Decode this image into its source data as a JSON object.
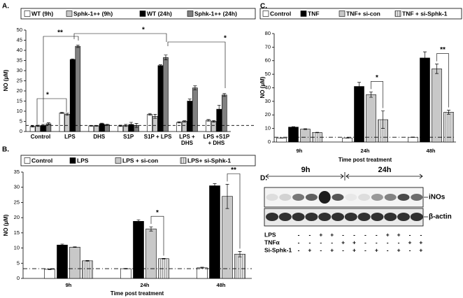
{
  "chart_data": [
    {
      "type": "bar",
      "panel_label": "A.",
      "ylabel": "NO (µM)",
      "categories": [
        "Control",
        "LPS",
        "DHS",
        "S1P",
        "S1P + LPS",
        "LPS + DHS",
        "LPS +S1P + DHS"
      ],
      "series": [
        {
          "name": "WT (9h)",
          "color": "#ffffff",
          "values": [
            2.5,
            9.2,
            2.8,
            2.8,
            8.5,
            4.5,
            5.5
          ],
          "errors": [
            0.3,
            0.3,
            0.2,
            0.3,
            0.4,
            0.3,
            0.4
          ]
        },
        {
          "name": "Sphk-1++ (9h)",
          "color": "#c8c8c8",
          "values": [
            2.8,
            8.5,
            2.8,
            3,
            7.5,
            5,
            5
          ],
          "errors": [
            0.3,
            0.5,
            0.2,
            0.5,
            1,
            0.3,
            0.4
          ]
        },
        {
          "name": "WT (24h)",
          "color": "#000000",
          "values": [
            3,
            35.5,
            3.8,
            3.5,
            32.5,
            15,
            11
          ],
          "errors": [
            0.5,
            0.3,
            0.3,
            1,
            0.4,
            1,
            2
          ]
        },
        {
          "name": "Sphk-1++ (24h)",
          "color": "#808080",
          "values": [
            3.8,
            42,
            3.3,
            3,
            36.5,
            21.5,
            18
          ],
          "errors": [
            0.5,
            0.6,
            0.3,
            1,
            1.2,
            1,
            0.7
          ]
        }
      ],
      "ylim": [
        0,
        50
      ],
      "yticks": [
        0,
        5,
        10,
        15,
        20,
        25,
        30,
        35,
        40,
        45,
        50
      ],
      "reference_line": 3,
      "annotations": [
        "*",
        "**",
        "*",
        "*"
      ]
    },
    {
      "type": "bar",
      "panel_label": "B.",
      "ylabel": "NO (µM)",
      "xlabel": "Time post treatment",
      "categories": [
        "9h",
        "24h",
        "48h"
      ],
      "series": [
        {
          "name": "Control",
          "color": "#ffffff",
          "values": [
            3,
            3.2,
            3.5
          ],
          "errors": [
            0.1,
            0.1,
            0.2
          ]
        },
        {
          "name": "LPS",
          "color": "#000000",
          "values": [
            11,
            18.8,
            30.5
          ],
          "errors": [
            0.3,
            0.5,
            0.7
          ]
        },
        {
          "name": "LPS + si-con",
          "color": "#c8c8c8",
          "values": [
            10.3,
            16.3,
            27
          ],
          "errors": [
            0.1,
            0.7,
            4
          ]
        },
        {
          "name": "LPS+ si-Sphk-1",
          "color": "#d8d8d8",
          "pattern": "hatch",
          "values": [
            5.8,
            6.5,
            8
          ],
          "errors": [
            0.1,
            0.1,
            0.9
          ]
        }
      ],
      "ylim": [
        0,
        35
      ],
      "yticks": [
        0,
        5,
        10,
        15,
        20,
        25,
        30,
        35
      ],
      "reference_line": 3.2,
      "annotations": [
        "*",
        "**"
      ]
    },
    {
      "type": "bar",
      "panel_label": "C.",
      "ylabel": "NO (µM)",
      "xlabel": "Time post treatment",
      "categories": [
        "9h",
        "24h",
        "48h"
      ],
      "series": [
        {
          "name": "Control",
          "color": "#ffffff",
          "values": [
            3,
            3,
            3.5
          ],
          "errors": [
            0.1,
            0.1,
            0.1
          ]
        },
        {
          "name": "TNF",
          "color": "#000000",
          "values": [
            11,
            41,
            62
          ],
          "errors": [
            0.3,
            3,
            4.5
          ]
        },
        {
          "name": "TNF+ si-con",
          "color": "#c8c8c8",
          "values": [
            9.5,
            35,
            54
          ],
          "errors": [
            0.3,
            2,
            3.5
          ]
        },
        {
          "name": "TNF + si-Sphk-1",
          "color": "#d8d8d8",
          "pattern": "hatch",
          "values": [
            7,
            16.5,
            22
          ],
          "errors": [
            0.2,
            6.5,
            1.5
          ]
        }
      ],
      "ylim": [
        0,
        80
      ],
      "yticks": [
        0,
        10,
        20,
        30,
        40,
        50,
        60,
        70,
        80
      ],
      "reference_line": 3.5,
      "annotations": [
        "*",
        "**"
      ]
    }
  ],
  "blot": {
    "panel_label": "D.",
    "time_labels": [
      "9h",
      "24h"
    ],
    "band_labels": [
      "iNOs",
      "β-actin"
    ],
    "treatments": [
      {
        "label": "LPS",
        "signs": [
          "-",
          "-",
          "+",
          "+",
          "-",
          "-",
          "-",
          "-",
          "+",
          "+",
          "-",
          "-"
        ]
      },
      {
        "label": "TNFα",
        "signs": [
          "-",
          "-",
          "-",
          "-",
          "+",
          "+",
          "-",
          "-",
          "-",
          "-",
          "+",
          "+"
        ]
      },
      {
        "label": "Si-Sphk-1",
        "signs": [
          "-",
          "+",
          "-",
          "+",
          "-",
          "+",
          "-",
          "+",
          "-",
          "+",
          "-",
          "+"
        ]
      }
    ]
  }
}
